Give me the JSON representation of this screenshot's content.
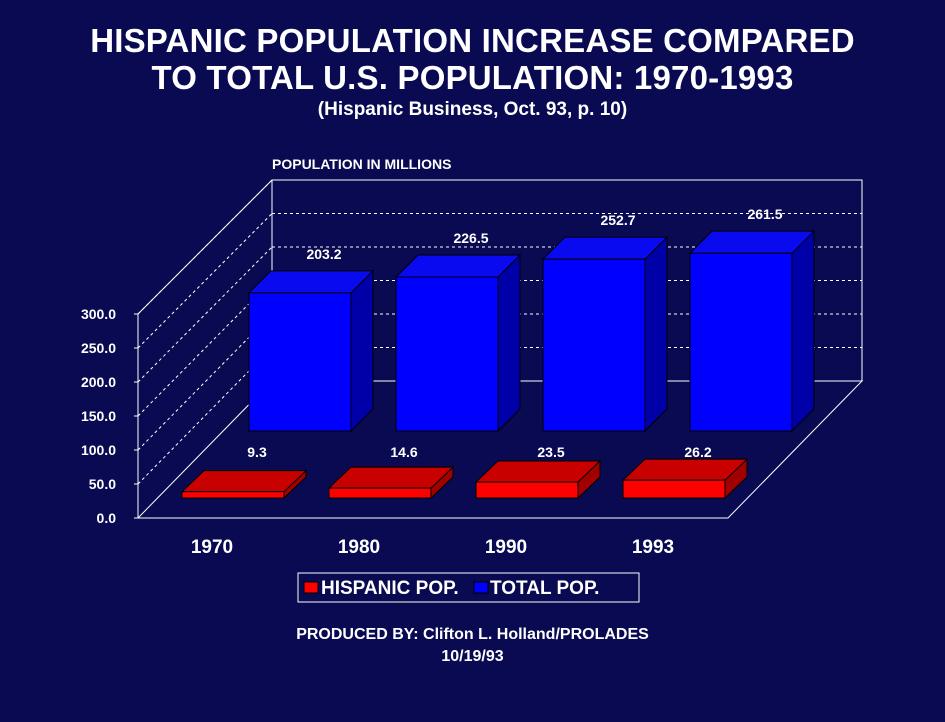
{
  "title_lines": [
    "HISPANIC POPULATION INCREASE COMPARED",
    "TO TOTAL U.S. POPULATION:  1970-1993"
  ],
  "subtitle": "(Hispanic Business, Oct. 93, p. 10)",
  "chart_data": {
    "type": "bar",
    "title": "HISPANIC POPULATION INCREASE COMPARED TO TOTAL U.S. POPULATION: 1970-1993",
    "ylabel": "POPULATION IN MILLIONS",
    "xlabel": "",
    "categories": [
      "1970",
      "1980",
      "1990",
      "1993"
    ],
    "series": [
      {
        "name": "HISPANIC POP.",
        "values": [
          9.3,
          14.6,
          23.5,
          26.2
        ],
        "color": "#ff0000",
        "value_labels": [
          "9.3",
          "14.6",
          "23.5",
          "26.2"
        ]
      },
      {
        "name": "TOTAL POP.",
        "values": [
          203.2,
          226.5,
          252.7,
          261.5
        ],
        "color": "#0000ff",
        "value_labels": [
          "203.2",
          "226.5",
          "252.7",
          "261.5"
        ]
      }
    ],
    "yticks": [
      0,
      50,
      100,
      150,
      200,
      250,
      300
    ],
    "ytick_labels": [
      "0.0",
      "50.0",
      "100.0",
      "150.0",
      "200.0",
      "250.0",
      "300.0"
    ],
    "ylim": [
      0,
      300
    ],
    "grid": true,
    "legend": "bottom"
  },
  "footer": {
    "produced_by": "PRODUCED BY:  Clifton L. Holland/PROLADES",
    "date": "10/19/93"
  }
}
